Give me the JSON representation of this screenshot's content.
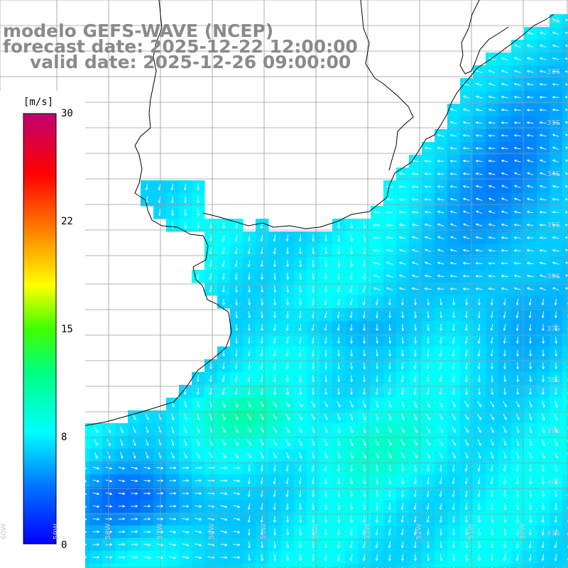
{
  "title": {
    "line1": "modelo GEFS-WAVE (NCEP)",
    "line2": "forecast date: 2025-12-22 12:00:00",
    "line3": "valid date: 2025-12-26 09:00:00"
  },
  "colorbar": {
    "unit": "[m/s]",
    "ticks": [
      "30",
      "22",
      "15",
      "8",
      "0"
    ],
    "range": [
      0,
      30
    ]
  },
  "grid": {
    "lat_labels": [
      "31S",
      "32S",
      "33S",
      "34S",
      "35S",
      "36S",
      "37S",
      "38S",
      "39S",
      "40S",
      "41S"
    ],
    "lon_labels": [
      "60W",
      "59W",
      "58W",
      "57W",
      "56W",
      "55W",
      "54W",
      "53W",
      "52W",
      "51W",
      "50W"
    ]
  },
  "colors": {
    "land": "#ffffff",
    "coast": "#000000",
    "grid": "#9a9a9a",
    "arrows": "#ffffff",
    "title": "#8a8a8a"
  }
}
